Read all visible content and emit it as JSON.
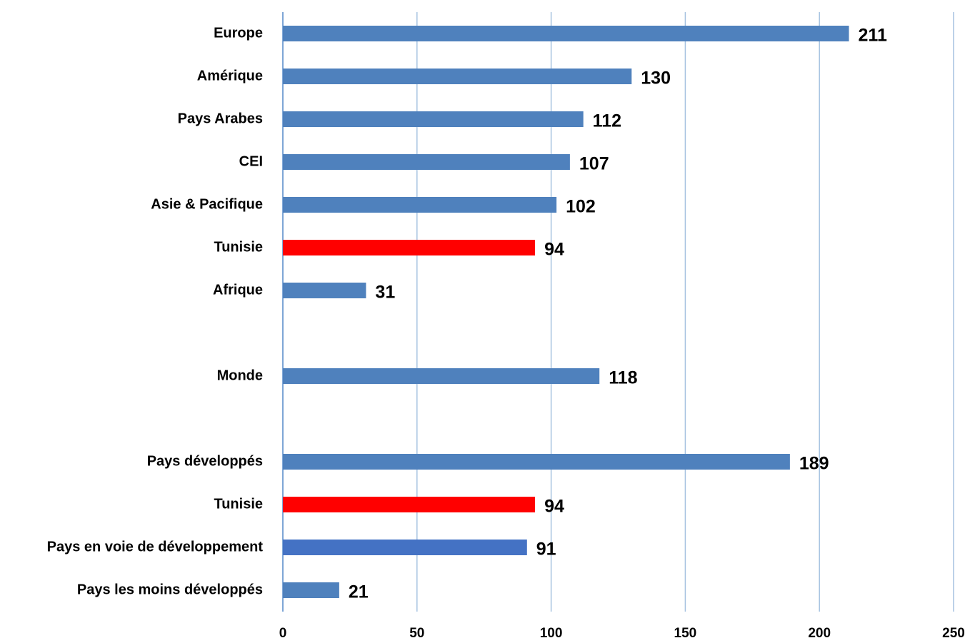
{
  "chart_data": {
    "type": "hbar",
    "categories": [
      "Europe",
      "Amérique",
      "Pays Arabes",
      "CEI",
      "Asie & Pacifique",
      "Tunisie",
      "Afrique",
      null,
      "Monde",
      null,
      "Pays développés",
      "Tunisie",
      "Pays en voie de développement",
      "Pays les moins développés"
    ],
    "values": [
      211,
      130,
      112,
      107,
      102,
      94,
      31,
      null,
      118,
      null,
      189,
      94,
      91,
      21
    ],
    "colors": [
      "#4f81bd",
      "#4f81bd",
      "#4f81bd",
      "#4f81bd",
      "#4f81bd",
      "#ff0000",
      "#4f81bd",
      null,
      "#4f81bd",
      null,
      "#4f81bd",
      "#ff0000",
      "#4472c4",
      "#4f81bd"
    ],
    "xlim": [
      0,
      250
    ],
    "xticks": [
      0,
      50,
      100,
      150,
      200,
      250
    ],
    "grid": true
  }
}
